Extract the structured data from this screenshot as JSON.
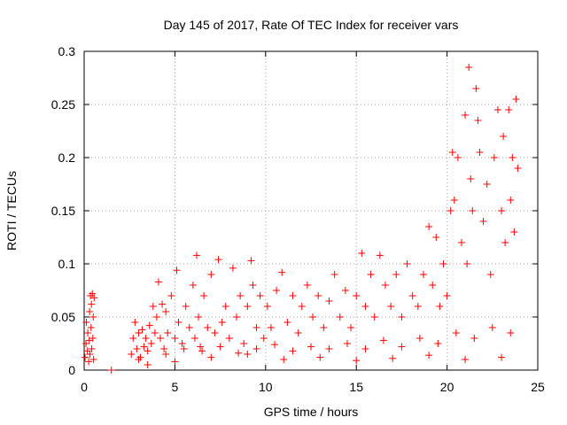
{
  "chart_data": {
    "type": "scatter",
    "title": "Day 145 of 2017, Rate Of TEC Index for receiver vars",
    "xlabel": "GPS time / hours",
    "ylabel": "ROTI / TECUs",
    "xlim": [
      0,
      25
    ],
    "ylim": [
      0,
      0.3
    ],
    "grid": true,
    "marker": "+",
    "color": "#ff0000",
    "x_ticks": [
      {
        "value": 0,
        "label": "0"
      },
      {
        "value": 5,
        "label": "5"
      },
      {
        "value": 10,
        "label": "10"
      },
      {
        "value": 15,
        "label": "15"
      },
      {
        "value": 20,
        "label": "20"
      },
      {
        "value": 25,
        "label": "25"
      }
    ],
    "y_ticks": [
      {
        "value": 0,
        "label": "0"
      },
      {
        "value": 0.05,
        "label": "0.05"
      },
      {
        "value": 0.1,
        "label": "0.1"
      },
      {
        "value": 0.15,
        "label": "0.15"
      },
      {
        "value": 0.2,
        "label": "0.2"
      },
      {
        "value": 0.25,
        "label": "0.25"
      },
      {
        "value": 0.3,
        "label": "0.3"
      }
    ],
    "series": [
      {
        "name": "ROTI",
        "points": [
          [
            0.05,
            0.012
          ],
          [
            0.1,
            0.025
          ],
          [
            0.12,
            0.045
          ],
          [
            0.18,
            0.018
          ],
          [
            0.2,
            0.035
          ],
          [
            0.25,
            0.008
          ],
          [
            0.28,
            0.028
          ],
          [
            0.3,
            0.055
          ],
          [
            0.32,
            0.015
          ],
          [
            0.35,
            0.07
          ],
          [
            0.38,
            0.04
          ],
          [
            0.4,
            0.062
          ],
          [
            0.42,
            0.02
          ],
          [
            0.45,
            0.072
          ],
          [
            0.48,
            0.03
          ],
          [
            0.5,
            0.05
          ],
          [
            0.52,
            0.01
          ],
          [
            0.55,
            0.068
          ],
          [
            2.6,
            0.015
          ],
          [
            2.7,
            0.03
          ],
          [
            2.8,
            0.045
          ],
          [
            2.9,
            0.02
          ],
          [
            3.0,
            0.035
          ],
          [
            3.1,
            0.012
          ],
          [
            3.2,
            0.038
          ],
          [
            3.3,
            0.022
          ],
          [
            3.4,
            0.03
          ],
          [
            3.5,
            0.018
          ],
          [
            3.6,
            0.042
          ],
          [
            3.7,
            0.025
          ],
          [
            3.8,
            0.06
          ],
          [
            3.9,
            0.035
          ],
          [
            4.0,
            0.05
          ],
          [
            4.1,
            0.083
          ],
          [
            4.2,
            0.03
          ],
          [
            4.3,
            0.062
          ],
          [
            4.4,
            0.02
          ],
          [
            4.5,
            0.055
          ],
          [
            4.6,
            0.035
          ],
          [
            4.8,
            0.07
          ],
          [
            5.0,
            0.03
          ],
          [
            5.1,
            0.094
          ],
          [
            5.2,
            0.045
          ],
          [
            5.4,
            0.025
          ],
          [
            5.6,
            0.06
          ],
          [
            5.8,
            0.04
          ],
          [
            6.0,
            0.08
          ],
          [
            6.1,
            0.03
          ],
          [
            6.2,
            0.108
          ],
          [
            6.3,
            0.05
          ],
          [
            6.4,
            0.022
          ],
          [
            6.6,
            0.07
          ],
          [
            6.8,
            0.04
          ],
          [
            7.0,
            0.09
          ],
          [
            7.2,
            0.035
          ],
          [
            7.4,
            0.104
          ],
          [
            7.6,
            0.045
          ],
          [
            7.8,
            0.06
          ],
          [
            8.0,
            0.03
          ],
          [
            8.2,
            0.096
          ],
          [
            8.4,
            0.05
          ],
          [
            8.6,
            0.07
          ],
          [
            8.8,
            0.025
          ],
          [
            9.0,
            0.06
          ],
          [
            9.2,
            0.103
          ],
          [
            9.3,
            0.08
          ],
          [
            9.5,
            0.04
          ],
          [
            9.7,
            0.07
          ],
          [
            9.9,
            0.03
          ],
          [
            10.1,
            0.06
          ],
          [
            10.3,
            0.04
          ],
          [
            10.6,
            0.075
          ],
          [
            10.9,
            0.092
          ],
          [
            11.2,
            0.045
          ],
          [
            11.5,
            0.07
          ],
          [
            11.8,
            0.035
          ],
          [
            12.0,
            0.06
          ],
          [
            12.3,
            0.08
          ],
          [
            12.6,
            0.05
          ],
          [
            12.9,
            0.07
          ],
          [
            13.2,
            0.04
          ],
          [
            13.5,
            0.065
          ],
          [
            13.8,
            0.09
          ],
          [
            14.1,
            0.05
          ],
          [
            14.4,
            0.075
          ],
          [
            14.7,
            0.04
          ],
          [
            15.0,
            0.07
          ],
          [
            15.3,
            0.11
          ],
          [
            15.5,
            0.06
          ],
          [
            15.8,
            0.09
          ],
          [
            16.0,
            0.05
          ],
          [
            16.3,
            0.108
          ],
          [
            16.6,
            0.08
          ],
          [
            16.9,
            0.06
          ],
          [
            17.2,
            0.09
          ],
          [
            17.5,
            0.05
          ],
          [
            17.8,
            0.1
          ],
          [
            18.1,
            0.07
          ],
          [
            18.4,
            0.06
          ],
          [
            18.7,
            0.09
          ],
          [
            19.0,
            0.135
          ],
          [
            19.2,
            0.08
          ],
          [
            19.4,
            0.125
          ],
          [
            19.6,
            0.06
          ],
          [
            19.8,
            0.1
          ],
          [
            20.0,
            0.07
          ],
          [
            20.2,
            0.15
          ],
          [
            20.3,
            0.205
          ],
          [
            20.4,
            0.16
          ],
          [
            20.6,
            0.2
          ],
          [
            20.8,
            0.12
          ],
          [
            21.0,
            0.24
          ],
          [
            21.1,
            0.1
          ],
          [
            21.2,
            0.285
          ],
          [
            21.3,
            0.18
          ],
          [
            21.4,
            0.15
          ],
          [
            21.6,
            0.265
          ],
          [
            21.7,
            0.235
          ],
          [
            21.8,
            0.205
          ],
          [
            22.0,
            0.14
          ],
          [
            22.2,
            0.175
          ],
          [
            22.4,
            0.09
          ],
          [
            22.6,
            0.2
          ],
          [
            22.8,
            0.245
          ],
          [
            23.0,
            0.15
          ],
          [
            23.1,
            0.22
          ],
          [
            23.2,
            0.12
          ],
          [
            23.4,
            0.245
          ],
          [
            23.5,
            0.16
          ],
          [
            23.6,
            0.2
          ],
          [
            23.7,
            0.13
          ],
          [
            23.8,
            0.255
          ],
          [
            23.9,
            0.19
          ],
          [
            1.5,
            0.0
          ],
          [
            3.0,
            0.01
          ],
          [
            5.0,
            0.008
          ],
          [
            7.0,
            0.012
          ],
          [
            9.0,
            0.015
          ],
          [
            11.0,
            0.01
          ],
          [
            13.0,
            0.012
          ],
          [
            15.0,
            0.009
          ],
          [
            17.0,
            0.011
          ],
          [
            19.0,
            0.014
          ],
          [
            21.0,
            0.01
          ],
          [
            23.0,
            0.012
          ],
          [
            3.5,
            0.005
          ],
          [
            4.5,
            0.015
          ],
          [
            5.5,
            0.02
          ],
          [
            6.5,
            0.018
          ],
          [
            7.5,
            0.022
          ],
          [
            8.5,
            0.016
          ],
          [
            9.5,
            0.02
          ],
          [
            10.5,
            0.024
          ],
          [
            11.5,
            0.018
          ],
          [
            12.5,
            0.022
          ],
          [
            13.5,
            0.02
          ],
          [
            14.5,
            0.025
          ],
          [
            15.5,
            0.02
          ],
          [
            16.5,
            0.028
          ],
          [
            17.5,
            0.022
          ],
          [
            18.5,
            0.03
          ],
          [
            19.5,
            0.025
          ],
          [
            20.5,
            0.035
          ],
          [
            21.5,
            0.03
          ],
          [
            22.5,
            0.04
          ],
          [
            23.5,
            0.035
          ]
        ]
      }
    ]
  }
}
